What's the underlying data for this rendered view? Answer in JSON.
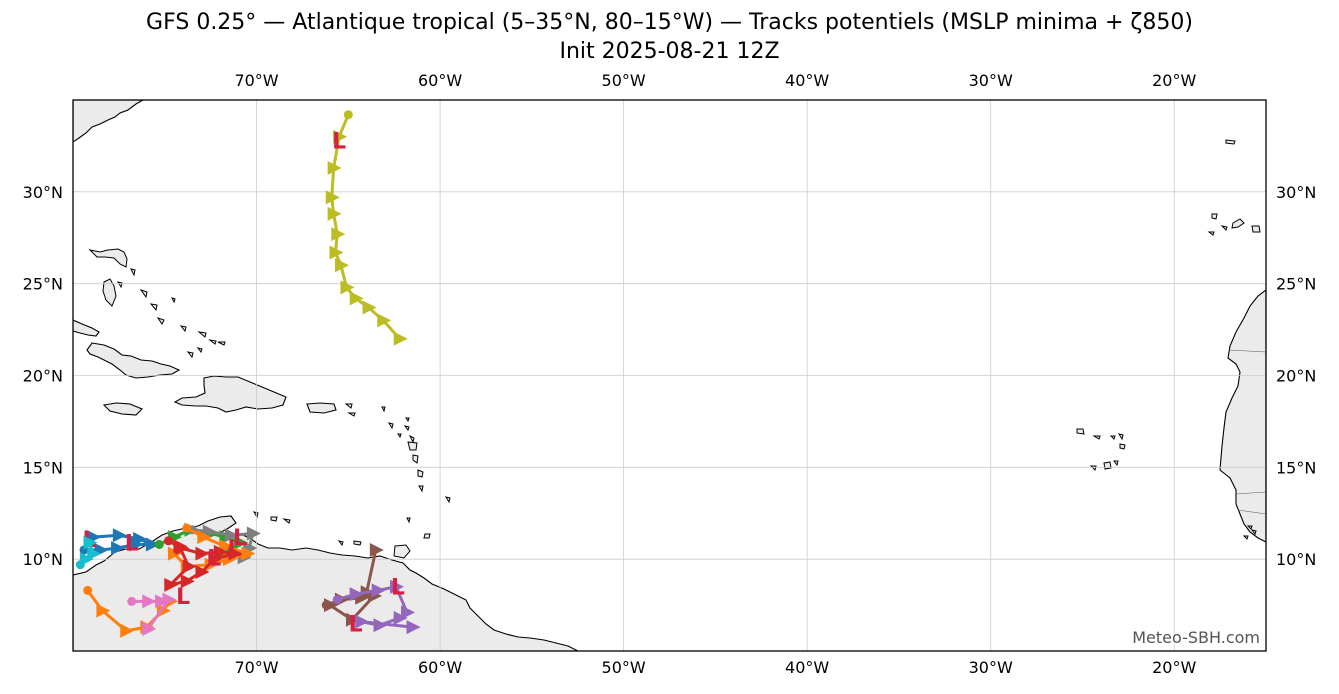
{
  "title": "GFS 0.25° — Atlantique tropical (5–35°N, 80–15°W) — Tracks potentiels (MSLP minima + ζ850)",
  "subtitle": "Init 2025-08-21 12Z",
  "credit": "Meteo-SBH.com",
  "colors": {
    "land": "#ebebeb",
    "coast": "#000000",
    "grid": "#cccccc",
    "low_marker": "#d62040"
  },
  "chart_data": {
    "type": "map-tracks",
    "extent": {
      "lon_min": -80,
      "lon_max": -15,
      "lat_min": 5,
      "lat_max": 35
    },
    "lon_ticks": [
      -70,
      -60,
      -50,
      -40,
      -30,
      -20
    ],
    "lat_ticks": [
      10,
      15,
      20,
      25,
      30
    ],
    "lon_labels": [
      "70°W",
      "60°W",
      "50°W",
      "40°W",
      "30°W",
      "20°W"
    ],
    "lat_labels": [
      "10°N",
      "15°N",
      "20°N",
      "25°N",
      "30°N"
    ],
    "grid": true,
    "low_label": "L",
    "tracks": [
      {
        "color": "#bcbd22",
        "points": [
          [
            -65.0,
            34.2
          ],
          [
            -65.5,
            33.0
          ],
          [
            -65.8,
            31.3
          ],
          [
            -65.9,
            29.7
          ],
          [
            -65.8,
            28.8
          ],
          [
            -65.6,
            27.7
          ],
          [
            -65.7,
            26.7
          ],
          [
            -65.4,
            26.0
          ],
          [
            -65.1,
            24.8
          ],
          [
            -64.6,
            24.2
          ],
          [
            -63.9,
            23.7
          ],
          [
            -63.1,
            23.0
          ],
          [
            -62.2,
            22.0
          ]
        ],
        "lows": [
          [
            -65.5,
            32.8
          ]
        ]
      },
      {
        "color": "#1f77b4",
        "points": [
          [
            -79.4,
            10.5
          ],
          [
            -78.5,
            10.5
          ],
          [
            -77.6,
            10.6
          ],
          [
            -76.6,
            10.8
          ],
          [
            -75.7,
            10.8
          ],
          [
            -76.4,
            11.1
          ],
          [
            -77.5,
            11.3
          ],
          [
            -78.9,
            11.2
          ]
        ],
        "lows": [
          [
            -79.1,
            11.1
          ],
          [
            -76.8,
            10.9
          ]
        ]
      },
      {
        "color": "#17becf",
        "points": [
          [
            -79.6,
            9.7
          ],
          [
            -79.3,
            10.0
          ],
          [
            -78.9,
            10.3
          ],
          [
            -79.1,
            10.9
          ]
        ],
        "lows": []
      },
      {
        "color": "#2ca02c",
        "points": [
          [
            -75.3,
            10.8
          ],
          [
            -74.5,
            11.2
          ],
          [
            -73.6,
            11.6
          ],
          [
            -72.5,
            11.4
          ],
          [
            -71.7,
            11.2
          ],
          [
            -70.9,
            10.9
          ],
          [
            -71.8,
            10.3
          ]
        ],
        "lows": []
      },
      {
        "color": "#7f7f7f",
        "points": [
          [
            -73.5,
            11.6
          ],
          [
            -72.6,
            11.5
          ],
          [
            -71.4,
            11.3
          ],
          [
            -70.2,
            11.4
          ],
          [
            -70.4,
            10.6
          ],
          [
            -70.7,
            10.1
          ]
        ],
        "lows": [
          [
            -70.9,
            11.2
          ]
        ]
      },
      {
        "color": "#ff7f0e",
        "points": [
          [
            -73.8,
            11.7
          ],
          [
            -72.9,
            11.2
          ],
          [
            -71.7,
            10.7
          ],
          [
            -70.5,
            10.3
          ],
          [
            -71.5,
            10.0
          ],
          [
            -72.5,
            9.7
          ],
          [
            -73.8,
            9.6
          ],
          [
            -74.5,
            10.3
          ]
        ],
        "lows": [
          [
            -71.2,
            10.6
          ]
        ]
      },
      {
        "color": "#d62728",
        "points": [
          [
            -74.8,
            11.0
          ],
          [
            -74.1,
            10.6
          ],
          [
            -73.0,
            10.3
          ],
          [
            -72.0,
            10.4
          ],
          [
            -71.2,
            10.3
          ],
          [
            -72.3,
            10.0
          ],
          [
            -73.0,
            9.3
          ],
          [
            -73.8,
            8.8
          ],
          [
            -74.7,
            8.6
          ],
          [
            -73.7,
            9.6
          ],
          [
            -74.2,
            10.7
          ]
        ],
        "lows": [
          [
            -72.3,
            10.1
          ],
          [
            -74.0,
            8.0
          ]
        ]
      },
      {
        "color": "#ff7f0e",
        "points": [
          [
            -79.2,
            8.3
          ],
          [
            -78.4,
            7.2
          ],
          [
            -77.1,
            6.1
          ],
          [
            -76.0,
            6.3
          ],
          [
            -75.1,
            7.2
          ],
          [
            -74.7,
            7.7
          ]
        ],
        "lows": []
      },
      {
        "color": "#e377c2",
        "points": [
          [
            -76.8,
            7.7
          ],
          [
            -75.9,
            7.7
          ],
          [
            -75.2,
            7.7
          ],
          [
            -74.8,
            7.8
          ],
          [
            -75.9,
            6.2
          ]
        ],
        "lows": []
      },
      {
        "color": "#8c564b",
        "points": [
          [
            -66.2,
            7.5
          ],
          [
            -65.4,
            7.8
          ],
          [
            -64.3,
            7.9
          ],
          [
            -63.6,
            8.0
          ],
          [
            -64.8,
            6.7
          ],
          [
            -66.0,
            7.5
          ],
          [
            -64.0,
            8.2
          ],
          [
            -63.5,
            10.5
          ]
        ],
        "lows": [
          [
            -64.6,
            6.5
          ]
        ]
      },
      {
        "color": "#9467bd",
        "points": [
          [
            -65.6,
            7.8
          ],
          [
            -64.6,
            8.1
          ],
          [
            -63.4,
            8.3
          ],
          [
            -62.4,
            8.5
          ],
          [
            -61.8,
            7.1
          ],
          [
            -62.2,
            6.8
          ],
          [
            -63.3,
            6.4
          ],
          [
            -64.3,
            6.6
          ],
          [
            -61.5,
            6.3
          ]
        ],
        "lows": [
          [
            -62.3,
            8.5
          ]
        ]
      }
    ]
  }
}
